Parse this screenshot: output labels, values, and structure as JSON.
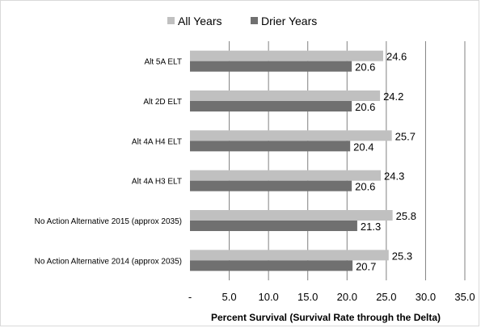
{
  "chart_data": {
    "type": "bar",
    "orientation": "horizontal",
    "categories": [
      "Alt 5A ELT",
      "Alt 2D ELT",
      "Alt 4A H4 ELT",
      "Alt 4A H3 ELT",
      "No Action Alternative 2015 (approx 2035)",
      "No Action Alternative 2014 (approx 2035)"
    ],
    "series": [
      {
        "name": "All Years",
        "color": "#c0c0c0",
        "values": [
          24.6,
          24.2,
          25.7,
          24.3,
          25.8,
          25.3
        ],
        "labels": [
          "24.6",
          "24.2",
          "25.7",
          "24.3",
          "25.8",
          "25.3"
        ]
      },
      {
        "name": "Drier Years",
        "color": "#707070",
        "values": [
          20.6,
          20.6,
          20.4,
          20.6,
          21.3,
          20.7
        ],
        "labels": [
          "20.6",
          "20.6",
          "20.4",
          "20.6",
          "21.3",
          "20.7"
        ]
      }
    ],
    "xlabel": "Percent Survival (Survival Rate through the Delta)",
    "xlim": [
      0,
      35
    ],
    "xticks": [
      0,
      5,
      10,
      15,
      20,
      25,
      30,
      35
    ],
    "xtick_labels": [
      "-",
      "5.0",
      "10.0",
      "15.0",
      "20.0",
      "25.0",
      "30.0",
      "35.0"
    ],
    "grid": "vertical",
    "gridline_color": "#808080",
    "legend": "top"
  }
}
